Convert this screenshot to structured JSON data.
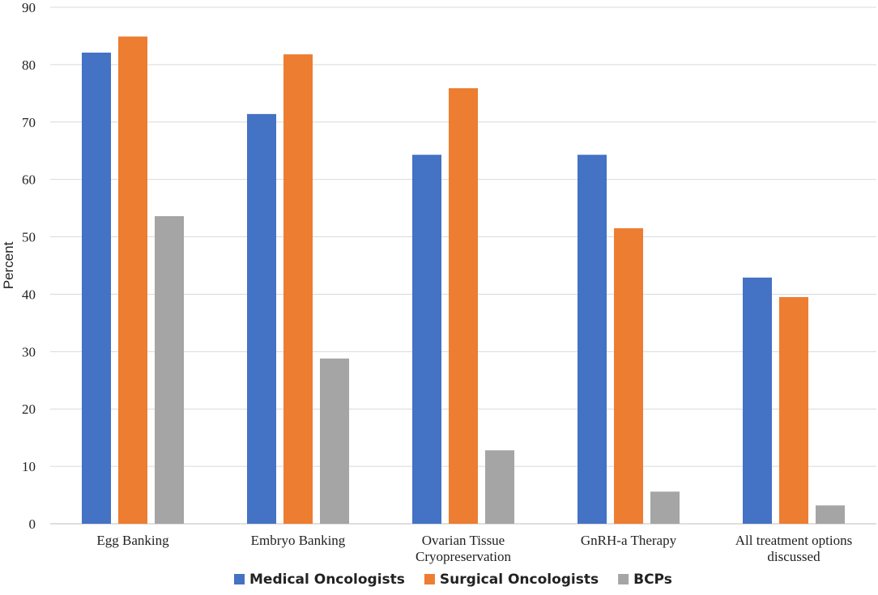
{
  "chart_data": {
    "type": "bar",
    "title": "",
    "xlabel": "",
    "ylabel": "Percent",
    "ylim": [
      0,
      90
    ],
    "yticks": [
      0,
      10,
      20,
      30,
      40,
      50,
      60,
      70,
      80,
      90
    ],
    "grid": true,
    "legend_position": "bottom",
    "categories": [
      [
        "Egg Banking"
      ],
      [
        "Embryo Banking"
      ],
      [
        "Ovarian Tissue",
        "Cryopreservation"
      ],
      [
        "GnRH-a Therapy"
      ],
      [
        "All treatment options",
        "discussed"
      ]
    ],
    "series": [
      {
        "name": "Medical Oncologists",
        "color": "#4472C4",
        "values": [
          82.1,
          71.4,
          64.3,
          64.3,
          42.9
        ]
      },
      {
        "name": "Surgical Oncologists",
        "color": "#ED7D31",
        "values": [
          84.9,
          81.8,
          75.9,
          51.5,
          39.5
        ]
      },
      {
        "name": "BCPs",
        "color": "#A5A5A5",
        "values": [
          53.6,
          28.8,
          12.8,
          5.6,
          3.2
        ]
      }
    ]
  }
}
